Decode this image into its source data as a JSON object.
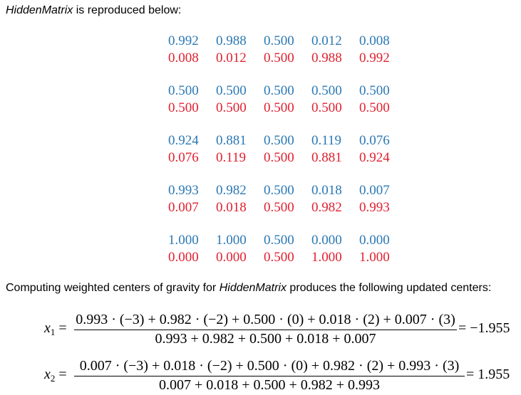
{
  "intro": {
    "prefix_italic": "HiddenMatrix",
    "suffix": " is reproduced below:"
  },
  "matrix": {
    "colors": {
      "blue": "#2a78b4",
      "red": "#e02030"
    },
    "groups": [
      {
        "top": [
          "0.992",
          "0.988",
          "0.500",
          "0.012",
          "0.008"
        ],
        "bottom": [
          "0.008",
          "0.012",
          "0.500",
          "0.988",
          "0.992"
        ]
      },
      {
        "top": [
          "0.500",
          "0.500",
          "0.500",
          "0.500",
          "0.500"
        ],
        "bottom": [
          "0.500",
          "0.500",
          "0.500",
          "0.500",
          "0.500"
        ]
      },
      {
        "top": [
          "0.924",
          "0.881",
          "0.500",
          "0.119",
          "0.076"
        ],
        "bottom": [
          "0.076",
          "0.119",
          "0.500",
          "0.881",
          "0.924"
        ]
      },
      {
        "top": [
          "0.993",
          "0.982",
          "0.500",
          "0.018",
          "0.007"
        ],
        "bottom": [
          "0.007",
          "0.018",
          "0.500",
          "0.982",
          "0.993"
        ]
      },
      {
        "top": [
          "1.000",
          "1.000",
          "0.500",
          "0.000",
          "0.000"
        ],
        "bottom": [
          "0.000",
          "0.000",
          "0.500",
          "1.000",
          "1.000"
        ]
      }
    ]
  },
  "centers_intro": {
    "prefix": "Computing weighted centers of gravity for ",
    "italic": "HiddenMatrix",
    "suffix": " produces the following updated centers:"
  },
  "equations": [
    {
      "var": "x",
      "sub": "1",
      "eq": "=",
      "numerator": "0.993 · (−3) + 0.982 · (−2) + 0.500 · (0) + 0.018 · (2) + 0.007 · (3)",
      "denominator": "0.993 + 0.982 + 0.500 + 0.018 + 0.007",
      "result": "= −1.955"
    },
    {
      "var": "x",
      "sub": "2",
      "eq": "=",
      "numerator": "0.007 · (−3) + 0.018 · (−2) + 0.500 · (0) + 0.982 · (2) + 0.993 · (3)",
      "denominator": "0.007 + 0.018 + 0.500 + 0.982 + 0.993",
      "result": "= 1.955"
    }
  ]
}
